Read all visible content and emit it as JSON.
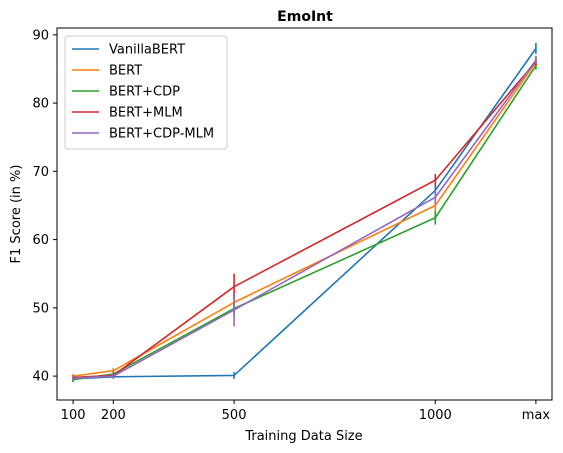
{
  "chart_data": {
    "type": "line",
    "title": "EmoInt",
    "xlabel": "Training Data Size",
    "ylabel": "F1 Score (in %)",
    "x_categories": [
      "100",
      "200",
      "500",
      "1000",
      "max"
    ],
    "x_positions": [
      100,
      200,
      500,
      1000,
      1250
    ],
    "xlim": [
      60,
      1290
    ],
    "ylim": [
      36.5,
      91
    ],
    "yticks": [
      40,
      50,
      60,
      70,
      80,
      90
    ],
    "legend_position": "top-left",
    "series": [
      {
        "name": "VanillaBERT",
        "color": "#1f77b4",
        "values": [
          39.6,
          39.9,
          40.1,
          67.2,
          88.0
        ],
        "errors": [
          0.3,
          0.3,
          0.5,
          1.2,
          0.8
        ]
      },
      {
        "name": "BERT",
        "color": "#ff7f0e",
        "values": [
          40.0,
          40.8,
          50.8,
          65.0,
          86.0
        ],
        "errors": [
          0.3,
          0.4,
          1.0,
          1.0,
          0.6
        ]
      },
      {
        "name": "BERT+CDP",
        "color": "#2ca02c",
        "values": [
          39.5,
          40.3,
          49.9,
          63.2,
          85.5
        ],
        "errors": [
          0.4,
          0.4,
          0.8,
          1.0,
          0.6
        ]
      },
      {
        "name": "BERT+MLM",
        "color": "#d62728",
        "values": [
          39.8,
          40.1,
          53.1,
          68.7,
          86.1
        ],
        "errors": [
          0.3,
          0.3,
          1.9,
          0.9,
          0.6
        ]
      },
      {
        "name": "BERT+CDP-MLM",
        "color": "#9467bd",
        "values": [
          39.7,
          40.0,
          49.7,
          66.2,
          86.3
        ],
        "errors": [
          0.3,
          0.3,
          2.4,
          1.0,
          0.6
        ]
      }
    ]
  }
}
